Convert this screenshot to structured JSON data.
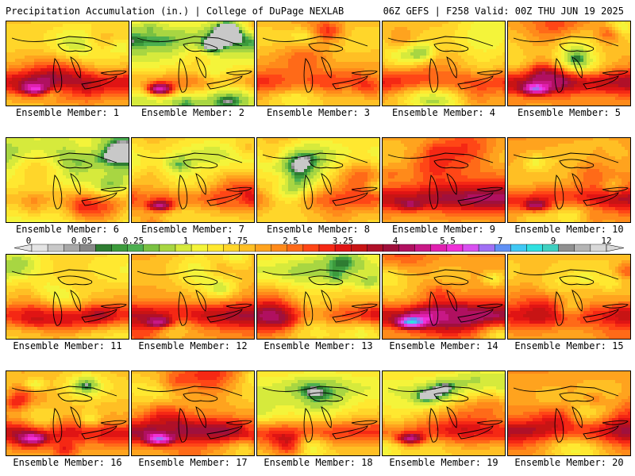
{
  "header": {
    "left": "Precipitation Accumulation (in.) | College of DuPage NEXLAB",
    "right": "06Z GEFS | F258 Valid: 00Z THU JUN 19 2025"
  },
  "panels": [
    {
      "label": "Ensemble Member: 1",
      "base": 1.6,
      "seed": 11,
      "wet_band": 0.7,
      "dry_north": 0.2,
      "peak": 5.8
    },
    {
      "label": "Ensemble Member: 2",
      "base": 1.0,
      "seed": 22,
      "wet_band": 0.6,
      "dry_north": 0.8,
      "peak": 5.5
    },
    {
      "label": "Ensemble Member: 3",
      "base": 1.7,
      "seed": 33,
      "wet_band": 0.6,
      "dry_north": 0.3,
      "peak": 3.5
    },
    {
      "label": "Ensemble Member: 4",
      "base": 1.8,
      "seed": 44,
      "wet_band": 0.6,
      "dry_north": 0.3,
      "peak": 3.3
    },
    {
      "label": "Ensemble Member: 5",
      "base": 2.0,
      "seed": 55,
      "wet_band": 0.8,
      "dry_north": 0.4,
      "peak": 7.0
    },
    {
      "label": "Ensemble Member: 6",
      "base": 0.9,
      "seed": 66,
      "wet_band": 0.3,
      "dry_north": 0.7,
      "peak": 2.0
    },
    {
      "label": "Ensemble Member: 7",
      "base": 1.4,
      "seed": 77,
      "wet_band": 0.6,
      "dry_north": 0.6,
      "peak": 5.6
    },
    {
      "label": "Ensemble Member: 8",
      "base": 1.4,
      "seed": 88,
      "wet_band": 0.5,
      "dry_north": 0.6,
      "peak": 3.0
    },
    {
      "label": "Ensemble Member: 9",
      "base": 1.9,
      "seed": 99,
      "wet_band": 0.7,
      "dry_north": 0.3,
      "peak": 4.5
    },
    {
      "label": "Ensemble Member: 10",
      "base": 2.1,
      "seed": 101,
      "wet_band": 0.7,
      "dry_north": 0.2,
      "peak": 5.5
    },
    {
      "label": "Ensemble Member: 11",
      "base": 1.4,
      "seed": 111,
      "wet_band": 0.6,
      "dry_north": 0.5,
      "peak": 3.4
    },
    {
      "label": "Ensemble Member: 12",
      "base": 1.9,
      "seed": 121,
      "wet_band": 0.7,
      "dry_north": 0.2,
      "peak": 5.6
    },
    {
      "label": "Ensemble Member: 13",
      "base": 1.4,
      "seed": 131,
      "wet_band": 0.6,
      "dry_north": 0.6,
      "peak": 3.3
    },
    {
      "label": "Ensemble Member: 14",
      "base": 2.1,
      "seed": 141,
      "wet_band": 0.9,
      "dry_north": 0.2,
      "peak": 8.0
    },
    {
      "label": "Ensemble Member: 15",
      "base": 1.7,
      "seed": 151,
      "wet_band": 0.5,
      "dry_north": 0.3,
      "peak": 3.3
    },
    {
      "label": "Ensemble Member: 16",
      "base": 1.8,
      "seed": 161,
      "wet_band": 0.7,
      "dry_north": 0.3,
      "peak": 5.6
    },
    {
      "label": "Ensemble Member: 17",
      "base": 1.8,
      "seed": 171,
      "wet_band": 0.9,
      "dry_north": 0.5,
      "peak": 7.2
    },
    {
      "label": "Ensemble Member: 18",
      "base": 1.5,
      "seed": 181,
      "wet_band": 0.6,
      "dry_north": 0.6,
      "peak": 3.3
    },
    {
      "label": "Ensemble Member: 19",
      "base": 1.5,
      "seed": 191,
      "wet_band": 0.6,
      "dry_north": 0.6,
      "peak": 5.6
    },
    {
      "label": "Ensemble Member: 20",
      "base": 2.1,
      "seed": 201,
      "wet_band": 0.7,
      "dry_north": 0.2,
      "peak": 3.4
    }
  ],
  "colorbar": {
    "tick_labels": [
      "0",
      "0.05",
      "0.25",
      "1",
      "1.75",
      "2.5",
      "3.25",
      "4",
      "5.5",
      "7",
      "9",
      "12"
    ],
    "thresholds": [
      0,
      0.01,
      0.03,
      0.05,
      0.1,
      0.15,
      0.2,
      0.25,
      0.5,
      0.75,
      1,
      1.25,
      1.5,
      1.75,
      2,
      2.25,
      2.5,
      2.75,
      3,
      3.25,
      3.5,
      3.75,
      4,
      4.5,
      5,
      5.5,
      6,
      6.5,
      7,
      7.5,
      8,
      9,
      10,
      11,
      12
    ],
    "colors": [
      "#e4e4e4",
      "#c8c8c8",
      "#a8a8a8",
      "#888888",
      "#2e7d32",
      "#3c9b3c",
      "#4caf50",
      "#7ac142",
      "#a8d642",
      "#d6ea3c",
      "#f4f43a",
      "#ffe830",
      "#ffd62a",
      "#ffbf24",
      "#ffa31e",
      "#ff8a1a",
      "#ff6a18",
      "#ff4616",
      "#f52814",
      "#e01414",
      "#c81414",
      "#b01028",
      "#a0103c",
      "#b01060",
      "#c81886",
      "#e020b0",
      "#f030d8",
      "#d850f0",
      "#a070f4",
      "#6090f4",
      "#40c8f4",
      "#30e0e0",
      "#40d0c0",
      "#909090",
      "#b4b4b4",
      "#d8d8d8"
    ]
  }
}
